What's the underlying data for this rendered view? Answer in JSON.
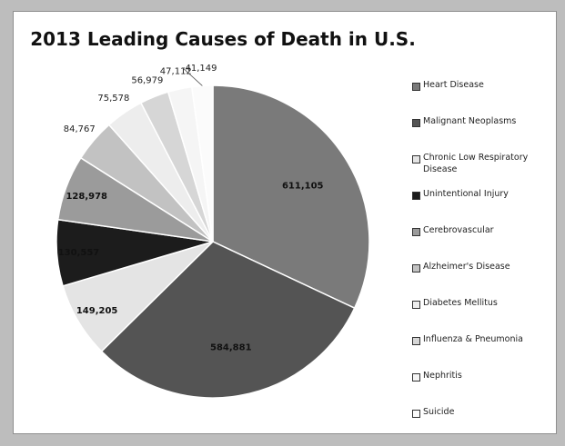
{
  "chart_data": {
    "type": "pie",
    "title": "2013 Leading Causes of Death in U.S.",
    "series": [
      {
        "name": "",
        "labels": [
          "Heart Disease",
          "Malignant Neoplasms",
          "Chronic Low Respiratory Disease",
          "Unintentional Injury",
          "Cerebrovascular",
          "Alzheimer's Disease",
          "Diabetes Mellitus",
          "Influenza & Pneumonia",
          "Nephritis",
          "Suicide"
        ],
        "values": [
          611105,
          584881,
          149205,
          130557,
          128978,
          84767,
          75578,
          56979,
          47112,
          41149
        ],
        "data_labels": [
          "611,105",
          "584,881",
          "149,205",
          "130,557",
          "128,978",
          "84,767",
          "75,578",
          "56,979",
          "47,112",
          "41,149"
        ],
        "colors": [
          "#7a7a7a",
          "#545454",
          "#e4e4e4",
          "#1c1c1c",
          "#9b9b9b",
          "#c2c2c2",
          "#ededed",
          "#d6d6d6",
          "#f5f5f5",
          "#fbfbfb"
        ]
      }
    ],
    "legend": {
      "position": "right",
      "entries": [
        "Heart Disease",
        "Malignant Neoplasms",
        "Chronic Low Respiratory Disease",
        "Unintentional Injury",
        "Cerebrovascular",
        "Alzheimer's Disease",
        "Diabetes Mellitus",
        "Influenza & Pneumonia",
        "Nephritis",
        "Suicide"
      ]
    }
  }
}
